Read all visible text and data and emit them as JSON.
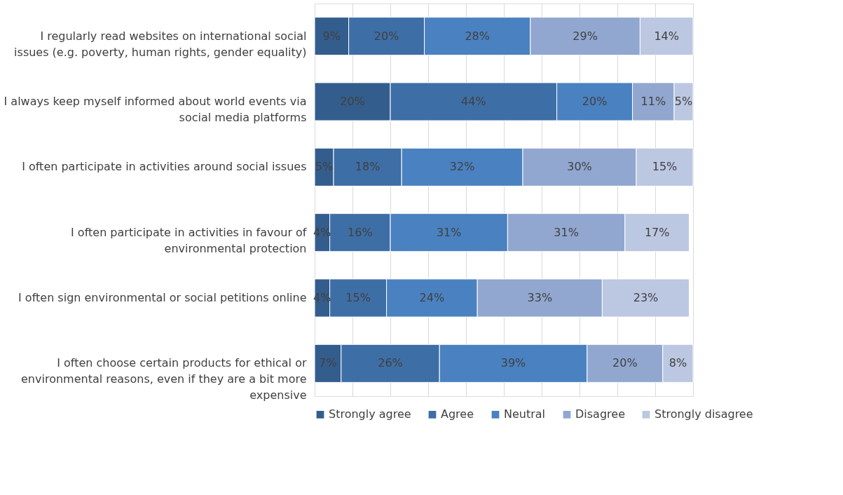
{
  "chart_data": {
    "type": "bar",
    "orientation": "horizontal",
    "stacked": true,
    "legend": "bottom",
    "grid": "x",
    "tick_labels": "y",
    "categories": [
      "I regularly read websites on international social issues (e.g. poverty, human rights, gender equality)",
      "I always keep myself informed about world events via social media platforms",
      "I often participate in activities around social issues",
      "I often participate in activities in favour of environmental protection",
      "I often sign environmental or social petitions online",
      "I often choose certain products for ethical or environmental reasons, even if they are a bit more expensive"
    ],
    "series": [
      {
        "name": "Strongly agree",
        "color": "#335d8c",
        "values": [
          9,
          20,
          5,
          4,
          4,
          7
        ],
        "value_labels": [
          "9%",
          "20%",
          "5%",
          "4%",
          "4%",
          "7%"
        ]
      },
      {
        "name": "Agree",
        "color": "#3e6ea6",
        "values": [
          20,
          44,
          18,
          16,
          15,
          26
        ],
        "value_labels": [
          "20%",
          "44%",
          "18%",
          "16%",
          "15%",
          "26%"
        ]
      },
      {
        "name": "Neutral",
        "color": "#4a81c0",
        "values": [
          28,
          20,
          32,
          31,
          24,
          39
        ],
        "value_labels": [
          "28%",
          "20%",
          "32%",
          "31%",
          "24%",
          "39%"
        ]
      },
      {
        "name": "Disagree",
        "color": "#91a7d0",
        "values": [
          29,
          11,
          30,
          31,
          33,
          20
        ],
        "value_labels": [
          "29%",
          "11%",
          "30%",
          "31%",
          "33%",
          "20%"
        ]
      },
      {
        "name": "Strongly disagree",
        "color": "#bcc7e2",
        "values": [
          14,
          5,
          15,
          17,
          23,
          8
        ],
        "value_labels": [
          "14%",
          "5%",
          "15%",
          "17%",
          "23%",
          "8%"
        ]
      }
    ]
  }
}
